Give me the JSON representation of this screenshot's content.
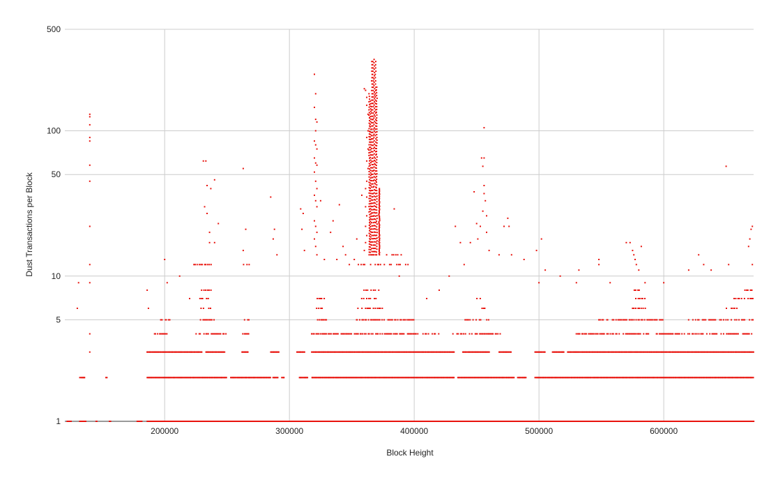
{
  "chart_data": {
    "type": "scatter",
    "title": "",
    "xlabel": "Block Height",
    "ylabel": "Dust Transactions per Block",
    "xlim": [
      120000,
      672000
    ],
    "ylim": [
      1,
      500
    ],
    "y_scale": "log",
    "grid": true,
    "legend": "none",
    "x_ticks": [
      200000,
      300000,
      400000,
      500000,
      600000
    ],
    "x_tick_labels": [
      "200000",
      "300000",
      "400000",
      "500000",
      "600000"
    ],
    "y_ticks": [
      1,
      5,
      10,
      50,
      100,
      500
    ],
    "y_tick_labels": [
      "1",
      "5",
      "10",
      "50",
      "100",
      "500"
    ],
    "point_color": "#e8120c",
    "series": [
      {
        "name": "",
        "levels": [
          {
            "y": 1,
            "ranges": [
              [
                122000,
                125000
              ],
              [
                132000,
                137000
              ],
              [
                145000,
                146000
              ],
              [
                156000,
                157000
              ],
              [
                178000,
                182000
              ],
              [
                186000,
                672000
              ]
            ]
          },
          {
            "y": 2,
            "ranges": [
              [
                133000,
                136000
              ],
              [
                153000,
                154000
              ],
              [
                186000,
                250000
              ],
              [
                253000,
                285000
              ],
              [
                287000,
                291000
              ],
              [
                294000,
                296000
              ],
              [
                308000,
                315000
              ],
              [
                318000,
                432000
              ],
              [
                435000,
                480000
              ],
              [
                483000,
                490000
              ],
              [
                497000,
                672000
              ]
            ]
          },
          {
            "y": 3,
            "ranges": [
              [
                186000,
                230000
              ],
              [
                233000,
                248000
              ],
              [
                262000,
                267000
              ],
              [
                285000,
                292000
              ],
              [
                306000,
                312000
              ],
              [
                318000,
                432000
              ],
              [
                439000,
                460000
              ],
              [
                468000,
                478000
              ],
              [
                497000,
                505000
              ],
              [
                511000,
                520000
              ],
              [
                523000,
                672000
              ]
            ]
          },
          {
            "y": 4,
            "ranges": [
              [
                190000,
                202000
              ],
              [
                225000,
                250000
              ],
              [
                262000,
                268000
              ],
              [
                318000,
                420000
              ],
              [
                430000,
                470000
              ],
              [
                530000,
                672000
              ]
            ]
          },
          {
            "y": 5,
            "ranges": [
              [
                197000,
                205000
              ],
              [
                228000,
                240000
              ],
              [
                263000,
                268000
              ],
              [
                318000,
                330000
              ],
              [
                350000,
                400000
              ],
              [
                440000,
                460000
              ],
              [
                548000,
                600000
              ],
              [
                620000,
                672000
              ]
            ]
          },
          {
            "y": 6,
            "ranges": [
              [
                228000,
                240000
              ],
              [
                322000,
                328000
              ],
              [
                355000,
                375000
              ],
              [
                450000,
                458000
              ],
              [
                575000,
                585000
              ],
              [
                650000,
                660000
              ]
            ]
          },
          {
            "y": 7,
            "ranges": [
              [
                228000,
                240000
              ],
              [
                322000,
                328000
              ],
              [
                358000,
                374000
              ],
              [
                450000,
                458000
              ],
              [
                575000,
                585000
              ],
              [
                655000,
                672000
              ]
            ]
          },
          {
            "y": 8,
            "ranges": [
              [
                230000,
                238000
              ],
              [
                360000,
                372000
              ],
              [
                575000,
                583000
              ],
              [
                665000,
                672000
              ]
            ]
          },
          {
            "y": 12,
            "ranges": [
              [
                222000,
                238000
              ],
              [
                262000,
                268000
              ],
              [
                355000,
                395000
              ]
            ]
          },
          {
            "y": 14,
            "ranges": [
              [
                378000,
                392000
              ]
            ]
          }
        ],
        "points": [
          {
            "x": 122000,
            "y": 1
          },
          {
            "x": 130000,
            "y": 6
          },
          {
            "x": 131000,
            "y": 9
          },
          {
            "x": 132000,
            "y": 2
          },
          {
            "x": 140000,
            "y": 4
          },
          {
            "x": 140000,
            "y": 3
          },
          {
            "x": 140000,
            "y": 9
          },
          {
            "x": 140000,
            "y": 12
          },
          {
            "x": 140000,
            "y": 22
          },
          {
            "x": 140000,
            "y": 45
          },
          {
            "x": 140000,
            "y": 58
          },
          {
            "x": 140000,
            "y": 85
          },
          {
            "x": 140000,
            "y": 90
          },
          {
            "x": 140000,
            "y": 110
          },
          {
            "x": 140000,
            "y": 125
          },
          {
            "x": 140000,
            "y": 130
          },
          {
            "x": 186000,
            "y": 8
          },
          {
            "x": 187000,
            "y": 6
          },
          {
            "x": 200000,
            "y": 13
          },
          {
            "x": 202000,
            "y": 9
          },
          {
            "x": 212000,
            "y": 10
          },
          {
            "x": 220000,
            "y": 7
          },
          {
            "x": 231000,
            "y": 62
          },
          {
            "x": 233000,
            "y": 62
          },
          {
            "x": 234000,
            "y": 42
          },
          {
            "x": 232000,
            "y": 30
          },
          {
            "x": 234000,
            "y": 27
          },
          {
            "x": 236000,
            "y": 20
          },
          {
            "x": 236000,
            "y": 17
          },
          {
            "x": 240000,
            "y": 17
          },
          {
            "x": 240000,
            "y": 46
          },
          {
            "x": 237000,
            "y": 40
          },
          {
            "x": 243000,
            "y": 23
          },
          {
            "x": 263000,
            "y": 55
          },
          {
            "x": 265000,
            "y": 21
          },
          {
            "x": 263000,
            "y": 15
          },
          {
            "x": 285000,
            "y": 35
          },
          {
            "x": 287000,
            "y": 18
          },
          {
            "x": 288000,
            "y": 21
          },
          {
            "x": 290000,
            "y": 14
          },
          {
            "x": 309000,
            "y": 29
          },
          {
            "x": 311000,
            "y": 27
          },
          {
            "x": 310000,
            "y": 21
          },
          {
            "x": 312000,
            "y": 15
          },
          {
            "x": 320000,
            "y": 245
          },
          {
            "x": 321000,
            "y": 180
          },
          {
            "x": 320000,
            "y": 145
          },
          {
            "x": 321000,
            "y": 120
          },
          {
            "x": 322000,
            "y": 115
          },
          {
            "x": 321000,
            "y": 100
          },
          {
            "x": 320000,
            "y": 85
          },
          {
            "x": 321000,
            "y": 80
          },
          {
            "x": 322000,
            "y": 75
          },
          {
            "x": 320000,
            "y": 65
          },
          {
            "x": 321000,
            "y": 60
          },
          {
            "x": 322000,
            "y": 58
          },
          {
            "x": 320000,
            "y": 52
          },
          {
            "x": 321000,
            "y": 45
          },
          {
            "x": 322000,
            "y": 40
          },
          {
            "x": 320000,
            "y": 36
          },
          {
            "x": 321000,
            "y": 33
          },
          {
            "x": 322000,
            "y": 30
          },
          {
            "x": 320000,
            "y": 24
          },
          {
            "x": 321000,
            "y": 22
          },
          {
            "x": 322000,
            "y": 20
          },
          {
            "x": 320000,
            "y": 18
          },
          {
            "x": 321000,
            "y": 16
          },
          {
            "x": 322000,
            "y": 14
          },
          {
            "x": 325000,
            "y": 33
          },
          {
            "x": 328000,
            "y": 13
          },
          {
            "x": 333000,
            "y": 20
          },
          {
            "x": 335000,
            "y": 24
          },
          {
            "x": 338000,
            "y": 13
          },
          {
            "x": 340000,
            "y": 31
          },
          {
            "x": 343000,
            "y": 16
          },
          {
            "x": 345000,
            "y": 14
          },
          {
            "x": 348000,
            "y": 12
          },
          {
            "x": 352000,
            "y": 13
          },
          {
            "x": 354000,
            "y": 18
          },
          {
            "x": 358000,
            "y": 36
          },
          {
            "x": 360000,
            "y": 195
          },
          {
            "x": 361000,
            "y": 190
          },
          {
            "x": 362000,
            "y": 170
          },
          {
            "x": 362000,
            "y": 150
          },
          {
            "x": 363000,
            "y": 130
          },
          {
            "x": 363000,
            "y": 100
          },
          {
            "x": 362000,
            "y": 90
          },
          {
            "x": 363000,
            "y": 75
          },
          {
            "x": 362000,
            "y": 62
          },
          {
            "x": 363000,
            "y": 55
          },
          {
            "x": 362000,
            "y": 45
          },
          {
            "x": 361000,
            "y": 40
          },
          {
            "x": 362000,
            "y": 35
          },
          {
            "x": 361000,
            "y": 30
          },
          {
            "x": 362000,
            "y": 26
          },
          {
            "x": 361000,
            "y": 22
          },
          {
            "x": 362000,
            "y": 19
          },
          {
            "x": 361000,
            "y": 17
          },
          {
            "x": 360000,
            "y": 15
          },
          {
            "x": 384000,
            "y": 29
          },
          {
            "x": 388000,
            "y": 10
          },
          {
            "x": 395000,
            "y": 12
          },
          {
            "x": 410000,
            "y": 7
          },
          {
            "x": 420000,
            "y": 8
          },
          {
            "x": 428000,
            "y": 10
          },
          {
            "x": 433000,
            "y": 22
          },
          {
            "x": 437000,
            "y": 17
          },
          {
            "x": 440000,
            "y": 12
          },
          {
            "x": 445000,
            "y": 17
          },
          {
            "x": 448000,
            "y": 38
          },
          {
            "x": 450000,
            "y": 23
          },
          {
            "x": 451000,
            "y": 18
          },
          {
            "x": 453000,
            "y": 22
          },
          {
            "x": 454000,
            "y": 65
          },
          {
            "x": 456000,
            "y": 65
          },
          {
            "x": 455000,
            "y": 57
          },
          {
            "x": 456000,
            "y": 42
          },
          {
            "x": 456000,
            "y": 37
          },
          {
            "x": 457000,
            "y": 33
          },
          {
            "x": 455000,
            "y": 28
          },
          {
            "x": 458000,
            "y": 26
          },
          {
            "x": 456000,
            "y": 105
          },
          {
            "x": 458000,
            "y": 20
          },
          {
            "x": 460000,
            "y": 15
          },
          {
            "x": 468000,
            "y": 14
          },
          {
            "x": 472000,
            "y": 22
          },
          {
            "x": 475000,
            "y": 25
          },
          {
            "x": 476000,
            "y": 22
          },
          {
            "x": 478000,
            "y": 14
          },
          {
            "x": 488000,
            "y": 13
          },
          {
            "x": 498000,
            "y": 15
          },
          {
            "x": 500000,
            "y": 9
          },
          {
            "x": 502000,
            "y": 18
          },
          {
            "x": 505000,
            "y": 11
          },
          {
            "x": 517000,
            "y": 10
          },
          {
            "x": 530000,
            "y": 9
          },
          {
            "x": 532000,
            "y": 11
          },
          {
            "x": 548000,
            "y": 13
          },
          {
            "x": 548000,
            "y": 12
          },
          {
            "x": 557000,
            "y": 9
          },
          {
            "x": 570000,
            "y": 17
          },
          {
            "x": 573000,
            "y": 17
          },
          {
            "x": 575000,
            "y": 15
          },
          {
            "x": 576000,
            "y": 14
          },
          {
            "x": 577000,
            "y": 13
          },
          {
            "x": 578000,
            "y": 12
          },
          {
            "x": 580000,
            "y": 11
          },
          {
            "x": 582000,
            "y": 16
          },
          {
            "x": 585000,
            "y": 9
          },
          {
            "x": 600000,
            "y": 9
          },
          {
            "x": 620000,
            "y": 11
          },
          {
            "x": 628000,
            "y": 14
          },
          {
            "x": 632000,
            "y": 12
          },
          {
            "x": 638000,
            "y": 11
          },
          {
            "x": 650000,
            "y": 57
          },
          {
            "x": 652000,
            "y": 12
          },
          {
            "x": 668000,
            "y": 16
          },
          {
            "x": 669000,
            "y": 18
          },
          {
            "x": 670000,
            "y": 21
          },
          {
            "x": 671000,
            "y": 22
          },
          {
            "x": 671000,
            "y": 12
          }
        ],
        "columns": [
          {
            "x": 366000,
            "from": 14,
            "to": 300
          },
          {
            "x": 367000,
            "from": 14,
            "to": 300
          },
          {
            "x": 368000,
            "from": 14,
            "to": 310
          },
          {
            "x": 369000,
            "from": 14,
            "to": 300
          },
          {
            "x": 370000,
            "from": 14,
            "to": 200
          },
          {
            "x": 372000,
            "from": 14,
            "to": 40
          },
          {
            "x": 364000,
            "from": 14,
            "to": 180
          },
          {
            "x": 365000,
            "from": 14,
            "to": 160
          }
        ]
      }
    ]
  }
}
